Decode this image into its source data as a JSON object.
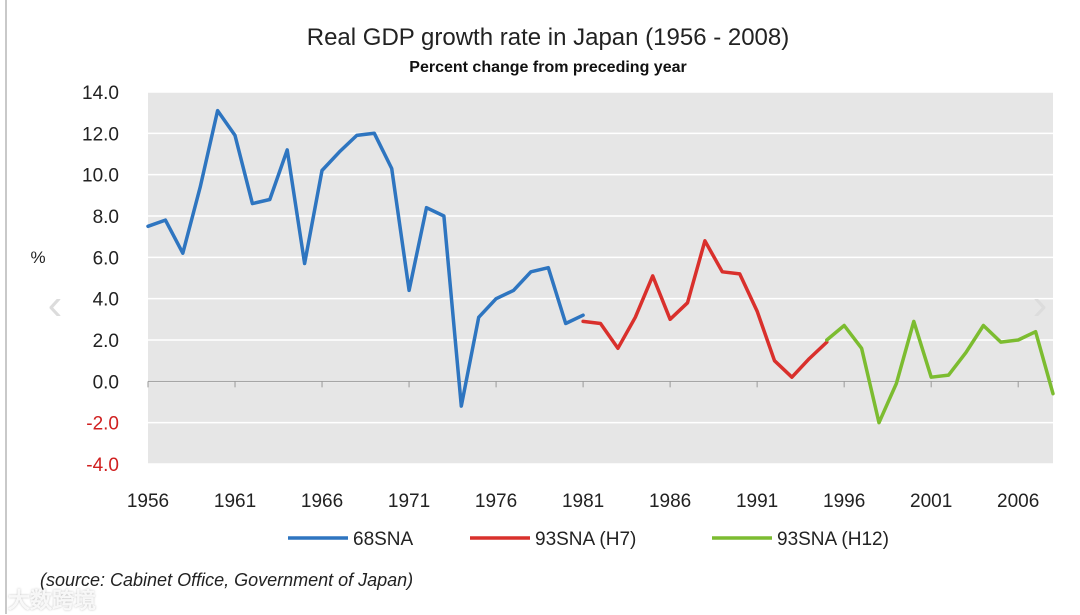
{
  "chart_data": {
    "type": "line",
    "title": "Real GDP growth rate in Japan (1956 - 2008)",
    "subtitle": "Percent change from preceding year",
    "ylabel": "%",
    "xlabel": "",
    "ylim": [
      -4.0,
      14.0
    ],
    "xlim": [
      1956,
      2008
    ],
    "yticks": [
      14.0,
      12.0,
      10.0,
      8.0,
      6.0,
      4.0,
      2.0,
      0.0,
      -2.0,
      -4.0
    ],
    "ytick_labels": [
      "14.0",
      "12.0",
      "10.0",
      "8.0",
      "6.0",
      "4.0",
      "2.0",
      "0.0",
      "-2.0",
      "-4.0"
    ],
    "xticks": [
      1956,
      1961,
      1966,
      1971,
      1976,
      1981,
      1986,
      1991,
      1996,
      2001,
      2006
    ],
    "xtick_labels": [
      "1956",
      "1961",
      "1966",
      "1971",
      "1976",
      "1981",
      "1986",
      "1991",
      "1996",
      "2001",
      "2006"
    ],
    "grid": true,
    "legend_position": "bottom",
    "series": [
      {
        "name": "68SNA",
        "color": "#2e75c0",
        "x": [
          1956,
          1957,
          1958,
          1959,
          1960,
          1961,
          1962,
          1963,
          1964,
          1965,
          1966,
          1967,
          1968,
          1969,
          1970,
          1971,
          1972,
          1973,
          1974,
          1975,
          1976,
          1977,
          1978,
          1979,
          1980,
          1981
        ],
        "values": [
          7.5,
          7.8,
          6.2,
          9.4,
          13.1,
          11.9,
          8.6,
          8.8,
          11.2,
          5.7,
          10.2,
          11.1,
          11.9,
          12.0,
          10.3,
          4.4,
          8.4,
          8.0,
          -1.2,
          3.1,
          4.0,
          4.4,
          5.3,
          5.5,
          2.8,
          3.2
        ]
      },
      {
        "name": "93SNA (H7)",
        "color": "#d9302c",
        "x": [
          1981,
          1982,
          1983,
          1984,
          1985,
          1986,
          1987,
          1988,
          1989,
          1990,
          1991,
          1992,
          1993,
          1994,
          1995
        ],
        "values": [
          2.9,
          2.8,
          1.6,
          3.1,
          5.1,
          3.0,
          3.8,
          6.8,
          5.3,
          5.2,
          3.4,
          1.0,
          0.2,
          1.1,
          1.9
        ]
      },
      {
        "name": "93SNA (H12)",
        "color": "#7cbc30",
        "x": [
          1995,
          1996,
          1997,
          1998,
          1999,
          2000,
          2001,
          2002,
          2003,
          2004,
          2005,
          2006,
          2007,
          2008
        ],
        "values": [
          2.0,
          2.7,
          1.6,
          -2.0,
          -0.1,
          2.9,
          0.2,
          0.3,
          1.4,
          2.7,
          1.9,
          2.0,
          2.4,
          -0.6
        ]
      }
    ]
  },
  "source_note": "(source: Cabinet Office, Government of Japan)",
  "watermark": "大数跨境",
  "nav": {
    "prev_icon": "‹",
    "next_icon": "›"
  }
}
